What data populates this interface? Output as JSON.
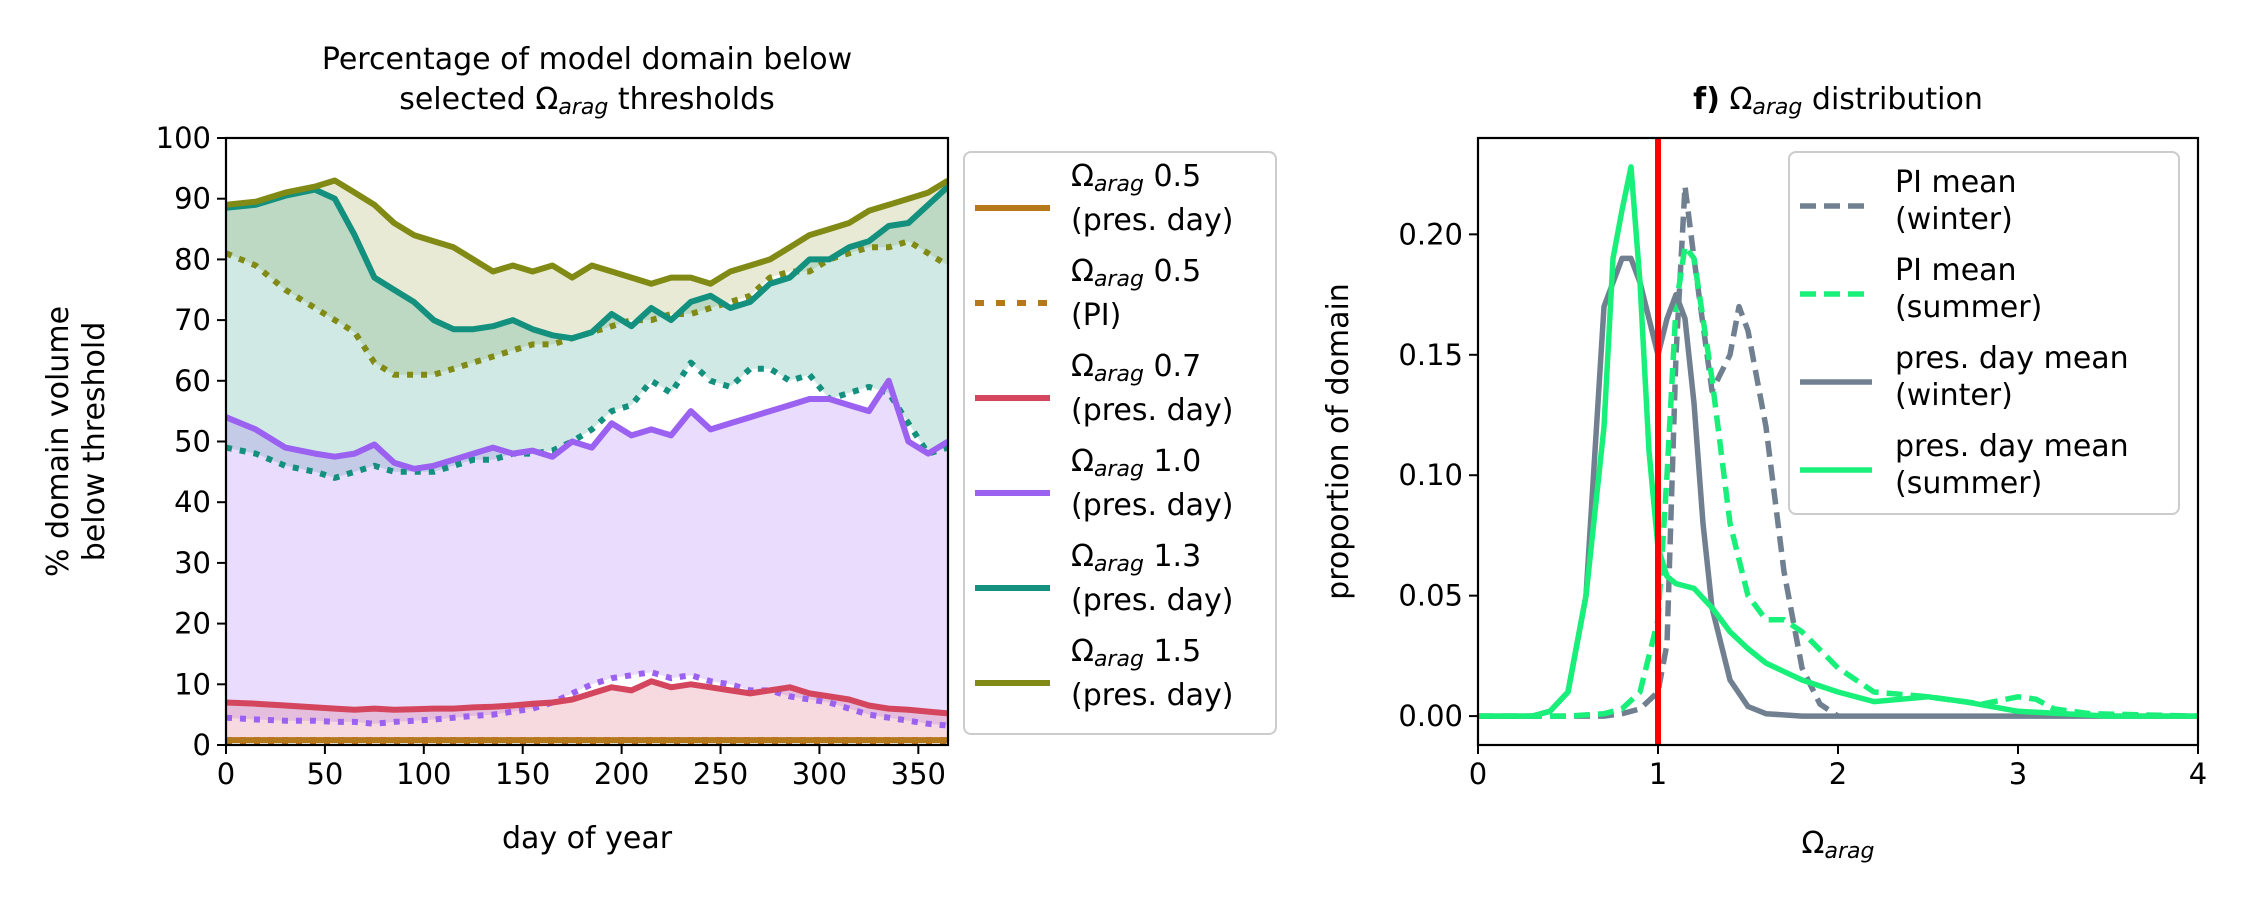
{
  "chart_data": [
    {
      "type": "line",
      "title": "Percentage of model domain below selected Ωarag thresholds",
      "title_lines": [
        [
          {
            "t": "Percentage of model domain below"
          }
        ],
        [
          {
            "t": "selected Ω"
          },
          {
            "t": "arag",
            "sub": true
          },
          {
            "t": " thresholds"
          }
        ]
      ],
      "xlabel": "day of year",
      "ylabel": "% domain volume below threshold",
      "ylabel_lines": [
        "% domain volume",
        "below threshold"
      ],
      "xlim": [
        0,
        365
      ],
      "ylim": [
        0,
        100
      ],
      "xticks": [
        0,
        50,
        100,
        150,
        200,
        250,
        300,
        350
      ],
      "yticks": [
        0,
        10,
        20,
        30,
        40,
        50,
        60,
        70,
        80,
        90,
        100
      ],
      "grid": false,
      "legend_position": "outside right",
      "x": [
        0,
        15,
        30,
        45,
        55,
        65,
        75,
        85,
        95,
        105,
        115,
        125,
        135,
        145,
        155,
        165,
        175,
        185,
        195,
        205,
        215,
        225,
        235,
        245,
        255,
        265,
        275,
        285,
        295,
        305,
        315,
        325,
        335,
        345,
        355,
        365
      ],
      "series": [
        {
          "name": "Ωarag 0.5 (pres. day)",
          "threshold": "0.5",
          "period": "(pres. day)",
          "color": "#b5781b",
          "style": "solid",
          "values": [
            0.8,
            0.8,
            0.8,
            0.8,
            0.8,
            0.8,
            0.8,
            0.8,
            0.8,
            0.8,
            0.8,
            0.8,
            0.8,
            0.8,
            0.8,
            0.8,
            0.8,
            0.8,
            0.8,
            0.8,
            0.8,
            0.8,
            0.8,
            0.8,
            0.8,
            0.8,
            0.8,
            0.8,
            0.8,
            0.8,
            0.8,
            0.8,
            0.8,
            0.8,
            0.8,
            0.8
          ]
        },
        {
          "name": "Ωarag 0.5 (PI)",
          "threshold": "0.5",
          "period": "(PI)",
          "color": "#b5781b",
          "style": "dotted",
          "values": [
            0.4,
            0.4,
            0.4,
            0.4,
            0.4,
            0.4,
            0.4,
            0.4,
            0.4,
            0.4,
            0.4,
            0.4,
            0.4,
            0.4,
            0.4,
            0.4,
            0.4,
            0.4,
            0.4,
            0.4,
            0.4,
            0.4,
            0.4,
            0.4,
            0.4,
            0.4,
            0.4,
            0.4,
            0.4,
            0.4,
            0.4,
            0.4,
            0.4,
            0.4,
            0.4,
            0.4
          ]
        },
        {
          "name": "Ωarag 0.7 (pres. day)",
          "threshold": "0.7",
          "period": "(pres. day)",
          "color": "#d4455e",
          "style": "solid",
          "values": [
            7,
            6.8,
            6.5,
            6.2,
            6,
            5.8,
            6,
            5.8,
            5.9,
            6,
            6,
            6.2,
            6.3,
            6.5,
            6.8,
            7,
            7.5,
            8.5,
            9.5,
            9,
            10.5,
            9.5,
            10,
            9.5,
            9,
            8.5,
            9,
            9.5,
            8.5,
            8,
            7.5,
            6.5,
            6,
            5.8,
            5.5,
            5.2
          ]
        },
        {
          "name": "Ωarag 0.7 (PI)",
          "color": "#d4455e",
          "style": "dotted",
          "values": [
            0.8,
            0.8,
            0.8,
            0.8,
            0.8,
            0.8,
            0.8,
            0.8,
            0.8,
            0.8,
            0.8,
            0.8,
            0.8,
            0.8,
            0.8,
            0.8,
            0.8,
            0.8,
            0.8,
            0.8,
            0.8,
            0.8,
            0.8,
            0.8,
            0.8,
            0.8,
            0.8,
            0.8,
            0.8,
            0.8,
            0.8,
            0.8,
            0.8,
            0.8,
            0.8,
            0.8
          ]
        },
        {
          "name": "Ωarag 1.0 (pres. day)",
          "threshold": "1.0",
          "period": "(pres. day)",
          "color": "#9b61f0",
          "style": "solid",
          "values": [
            54,
            52,
            49,
            48,
            47.5,
            48,
            49.5,
            46.5,
            45.5,
            46,
            47,
            48,
            49,
            48,
            48.5,
            47.5,
            50,
            49,
            53,
            51,
            52,
            51,
            55,
            52,
            53,
            54,
            55,
            56,
            57,
            57,
            56,
            55,
            60,
            50,
            48,
            50
          ]
        },
        {
          "name": "Ωarag 1.0 (PI)",
          "color": "#9b61f0",
          "style": "dotted",
          "values": [
            4.5,
            4.2,
            4,
            4,
            3.8,
            3.8,
            3.5,
            3.8,
            4,
            4.2,
            4.5,
            4.8,
            5,
            5.5,
            6,
            7,
            8.5,
            10,
            11,
            11.5,
            12,
            11,
            11.5,
            10.5,
            10,
            9,
            9,
            8,
            7.5,
            7,
            6,
            5,
            4.5,
            4,
            3.5,
            3.2
          ]
        },
        {
          "name": "Ωarag 1.3 (pres. day)",
          "threshold": "1.3",
          "period": "(pres. day)",
          "color": "#13907e",
          "style": "solid",
          "values": [
            88.5,
            89,
            90.5,
            91.5,
            90,
            84,
            77,
            75,
            73,
            70,
            68.5,
            68.5,
            69,
            70,
            68.5,
            67.5,
            67,
            68,
            71,
            69,
            72,
            70,
            73,
            74,
            72,
            73,
            76,
            77,
            80,
            80,
            82,
            83,
            85.5,
            86,
            89,
            92
          ]
        },
        {
          "name": "Ωarag 1.3 (PI)",
          "color": "#13907e",
          "style": "dotted",
          "values": [
            49,
            48,
            46,
            45,
            44,
            45,
            46,
            45,
            45,
            45,
            46,
            47,
            47,
            48,
            48,
            48.5,
            50,
            52,
            55,
            56,
            60,
            58,
            63,
            60,
            59,
            62,
            62,
            60,
            61,
            57,
            58,
            59,
            58,
            53,
            48,
            49
          ]
        },
        {
          "name": "Ωarag 1.5 (pres. day)",
          "threshold": "1.5",
          "period": "(pres. day)",
          "color": "#808a14",
          "style": "solid",
          "values": [
            89,
            89.5,
            91,
            92,
            93,
            91,
            89,
            86,
            84,
            83,
            82,
            80,
            78,
            79,
            78,
            79,
            77,
            79,
            78,
            77,
            76,
            77,
            77,
            76,
            78,
            79,
            80,
            82,
            84,
            85,
            86,
            88,
            89,
            90,
            91,
            93
          ]
        },
        {
          "name": "Ωarag 1.5 (PI)",
          "color": "#808a14",
          "style": "dotted",
          "values": [
            81,
            79,
            75,
            72,
            70,
            68,
            63,
            61,
            61,
            61,
            62,
            63,
            64,
            65,
            66,
            66,
            67,
            68,
            69,
            70,
            70,
            71,
            71,
            72,
            73,
            74,
            77,
            78,
            78,
            80,
            81,
            82,
            82,
            83,
            81,
            79
          ]
        }
      ],
      "fills": [
        {
          "upper": "Ωarag 1.5 (pres. day)",
          "lower": "Ωarag 1.5 (PI)",
          "color": "#808a14",
          "opacity": 0.18
        },
        {
          "upper": "Ωarag 1.3 (pres. day)",
          "lower": "Ωarag 1.3 (PI)",
          "color": "#13907e",
          "opacity": 0.2
        },
        {
          "upper": "Ωarag 1.0 (pres. day)",
          "lower": "Ωarag 1.0 (PI)",
          "color": "#9b61f0",
          "opacity": 0.22
        },
        {
          "upper": "Ωarag 0.7 (pres. day)",
          "lower": "Ωarag 0.7 (PI)",
          "color": "#d4455e",
          "opacity": 0.2
        }
      ],
      "legend": [
        {
          "threshold": "0.5",
          "period": "(pres. day)",
          "color": "#b5781b",
          "style": "solid"
        },
        {
          "threshold": "0.5",
          "period": "(PI)",
          "color": "#b5781b",
          "style": "dotted"
        },
        {
          "threshold": "0.7",
          "period": "(pres. day)",
          "color": "#d4455e",
          "style": "solid"
        },
        {
          "threshold": "1.0",
          "period": "(pres. day)",
          "color": "#9b61f0",
          "style": "solid"
        },
        {
          "threshold": "1.3",
          "period": "(pres. day)",
          "color": "#13907e",
          "style": "solid"
        },
        {
          "threshold": "1.5",
          "period": "(pres. day)",
          "color": "#808a14",
          "style": "solid"
        }
      ]
    },
    {
      "type": "line",
      "title": "f) Ωarag distribution",
      "title_bold": "f)",
      "title_rest": [
        {
          "t": " Ω"
        },
        {
          "t": "arag",
          "sub": true
        },
        {
          "t": " distribution"
        }
      ],
      "xlabel": "Ωarag",
      "xlabel_parts": [
        {
          "t": "Ω"
        },
        {
          "t": "arag",
          "sub": true
        }
      ],
      "ylabel": "proportion of domain",
      "xlim": [
        0,
        4
      ],
      "ylim": [
        -0.012,
        0.24
      ],
      "xticks": [
        0,
        1,
        2,
        3,
        4
      ],
      "yticks": [
        0.0,
        0.05,
        0.1,
        0.15,
        0.2
      ],
      "ytick_labels": [
        "0.00",
        "0.05",
        "0.10",
        "0.15",
        "0.20"
      ],
      "grid": false,
      "legend_position": "upper right",
      "vline": {
        "x": 1.0,
        "color": "#ff0000"
      },
      "series": [
        {
          "name": "PI mean (winter)",
          "label_lines": [
            "PI mean",
            " (winter)"
          ],
          "color": "#708090",
          "style": "dashed",
          "x": [
            0,
            0.3,
            0.5,
            0.7,
            0.8,
            0.9,
            1.0,
            1.05,
            1.1,
            1.15,
            1.2,
            1.3,
            1.4,
            1.45,
            1.5,
            1.6,
            1.7,
            1.8,
            1.9,
            2.0
          ],
          "y": [
            0,
            0,
            0,
            0,
            0.001,
            0.003,
            0.01,
            0.03,
            0.15,
            0.22,
            0.19,
            0.135,
            0.15,
            0.17,
            0.16,
            0.12,
            0.06,
            0.02,
            0.005,
            0
          ]
        },
        {
          "name": "PI mean (summer)",
          "label_lines": [
            "PI mean",
            " (summer)"
          ],
          "color": "#18f07a",
          "style": "dashed",
          "x": [
            0,
            0.5,
            0.7,
            0.8,
            0.9,
            1.0,
            1.05,
            1.1,
            1.15,
            1.2,
            1.3,
            1.4,
            1.5,
            1.6,
            1.7,
            1.8,
            2.0,
            2.2,
            2.5,
            2.8,
            3.0,
            3.1,
            3.2,
            3.4,
            4.0
          ],
          "y": [
            0,
            0,
            0.001,
            0.003,
            0.01,
            0.04,
            0.1,
            0.17,
            0.195,
            0.19,
            0.14,
            0.08,
            0.05,
            0.04,
            0.04,
            0.035,
            0.02,
            0.01,
            0.008,
            0.005,
            0.008,
            0.007,
            0.003,
            0.001,
            0
          ]
        },
        {
          "name": "pres. day mean (winter)",
          "label_lines": [
            "pres. day mean",
            " (winter)"
          ],
          "color": "#708090",
          "style": "solid",
          "x": [
            0,
            0.3,
            0.4,
            0.5,
            0.6,
            0.7,
            0.8,
            0.85,
            0.9,
            0.95,
            1.0,
            1.05,
            1.1,
            1.15,
            1.2,
            1.25,
            1.3,
            1.35,
            1.4,
            1.5,
            1.6,
            1.8,
            2.0,
            2.5,
            4.0
          ],
          "y": [
            0,
            0,
            0.002,
            0.01,
            0.05,
            0.17,
            0.19,
            0.19,
            0.18,
            0.165,
            0.15,
            0.165,
            0.175,
            0.165,
            0.13,
            0.08,
            0.045,
            0.03,
            0.015,
            0.004,
            0.001,
            0,
            0,
            0,
            0
          ]
        },
        {
          "name": "pres. day mean (summer)",
          "label_lines": [
            "pres. day mean",
            " (summer)"
          ],
          "color": "#18f07a",
          "style": "solid",
          "x": [
            0,
            0.3,
            0.4,
            0.5,
            0.6,
            0.7,
            0.75,
            0.8,
            0.85,
            0.9,
            0.95,
            1.0,
            1.05,
            1.1,
            1.2,
            1.3,
            1.4,
            1.5,
            1.6,
            1.8,
            2.0,
            2.2,
            2.5,
            2.7,
            3.0,
            3.5,
            4.0
          ],
          "y": [
            0,
            0,
            0.002,
            0.01,
            0.05,
            0.12,
            0.19,
            0.21,
            0.228,
            0.18,
            0.11,
            0.07,
            0.058,
            0.055,
            0.053,
            0.045,
            0.035,
            0.028,
            0.022,
            0.015,
            0.01,
            0.006,
            0.008,
            0.006,
            0.002,
            0,
            0
          ]
        }
      ]
    }
  ]
}
